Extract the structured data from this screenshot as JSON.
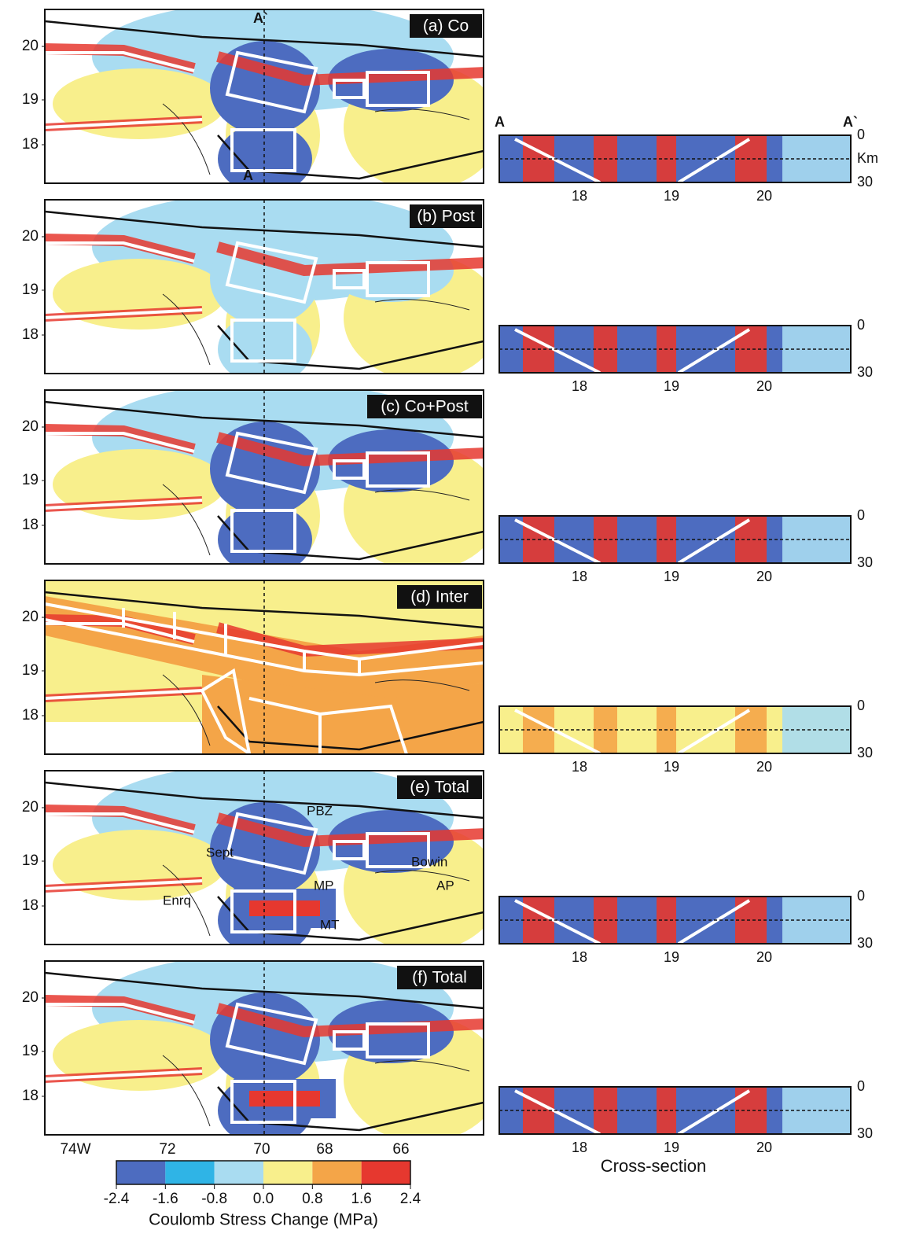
{
  "panels": [
    "(a) Co",
    "(b) Post",
    "(c) Co+Post",
    "(d) Inter",
    "(e) Total",
    "(f) Total"
  ],
  "lat_ticks": [
    "20",
    "19",
    "18"
  ],
  "lon_ticks": [
    "74W",
    "72",
    "70",
    "68",
    "66"
  ],
  "section": {
    "x_ticks": [
      "18",
      "19",
      "20"
    ],
    "depth_ticks": [
      "0",
      "30"
    ],
    "depth_unit": "Km",
    "end_left": "A",
    "end_right": "A`",
    "title": "Cross-section"
  },
  "profile_labels": {
    "top": "A`",
    "bottom": "A"
  },
  "place_names": [
    "PBZ",
    "Sept",
    "Bowin",
    "MP",
    "AP",
    "Enrq",
    "MT"
  ],
  "colorbar": {
    "ticks": [
      "-2.4",
      "-1.6",
      "-0.8",
      "0.0",
      "0.8",
      "1.6",
      "2.4"
    ],
    "colors": [
      "#4d6cc0",
      "#2fb4e6",
      "#a9dcf1",
      "#f8ef8c",
      "#f4a548",
      "#e6382f"
    ],
    "title": "Coulomb Stress Change (MPa)"
  }
}
